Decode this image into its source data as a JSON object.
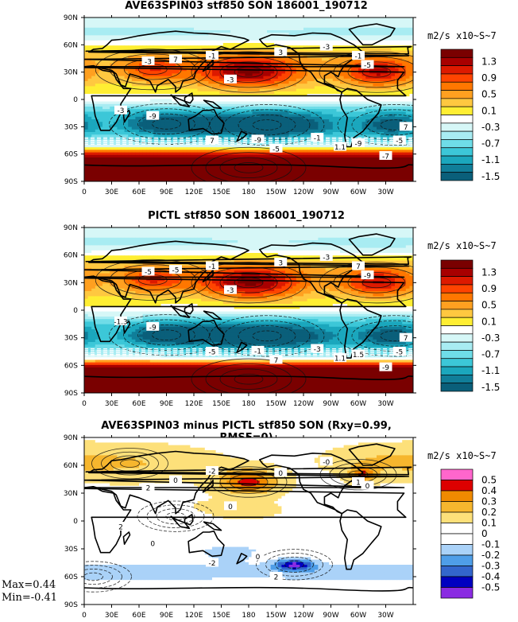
{
  "panels": [
    {
      "id": "p1",
      "title": "AVE63SPIN03 stf850 SON 186001_190712",
      "units": "m2/s x10~S~7",
      "colorbar": {
        "labels": [
          "1.3",
          "0.9",
          "0.5",
          "0.1",
          "-0.3",
          "-0.7",
          "-1.1",
          "-1.5"
        ],
        "colors": [
          "#7a0000",
          "#a80000",
          "#dd1a00",
          "#ff4400",
          "#ff7700",
          "#ffa020",
          "#ffc840",
          "#ffee33",
          "#ffffff",
          "#d6f7f7",
          "#a8ecf2",
          "#6fdde8",
          "#3cc7d8",
          "#1ba7bd",
          "#107e99",
          "#0a5f7a"
        ]
      },
      "contour_labels": [
        "-3",
        "7",
        "-1",
        "-3",
        "3",
        "-3",
        "-1",
        "-5",
        "-3",
        "-9",
        "7",
        "-9",
        "-5",
        "-1",
        "1.1",
        "-9",
        "-7",
        "-5",
        "7"
      ],
      "stats": null
    },
    {
      "id": "p2",
      "title": "PICTL stf850 SON 186001_190712",
      "units": "m2/s x10~S~7",
      "colorbar": {
        "labels": [
          "1.3",
          "0.9",
          "0.5",
          "0.1",
          "-0.3",
          "-0.7",
          "-1.1",
          "-1.5"
        ],
        "colors": [
          "#7a0000",
          "#a80000",
          "#dd1a00",
          "#ff4400",
          "#ff7700",
          "#ffa020",
          "#ffc840",
          "#ffee33",
          "#ffffff",
          "#d6f7f7",
          "#a8ecf2",
          "#6fdde8",
          "#3cc7d8",
          "#1ba7bd",
          "#107e99",
          "#0a5f7a"
        ]
      },
      "contour_labels": [
        "-5",
        "-5",
        "-1",
        "-3",
        "3",
        "-3",
        "7",
        "-9",
        "-1.3",
        "-9",
        "-5",
        "-1",
        "7",
        "-3",
        "1.1",
        "1.5",
        "-9",
        "-5",
        "7"
      ],
      "stats": null
    },
    {
      "id": "p3",
      "title": "AVE63SPIN03 minus PICTL stf850 SON (Rxy=0.99, RMSE=0)",
      "units": "m2/s x10~S~7",
      "colorbar": {
        "labels": [
          "0.5",
          "0.4",
          "0.3",
          "0.2",
          "0.1",
          "0",
          "-0.1",
          "-0.2",
          "-0.3",
          "-0.4",
          "-0.5"
        ],
        "colors": [
          "#ff66cc",
          "#dd0000",
          "#f08a00",
          "#f6b62e",
          "#fde07a",
          "#ffffff",
          "#ffffff",
          "#aad2f8",
          "#4f9ee8",
          "#3366cc",
          "#0000c0",
          "#8a2be2"
        ]
      },
      "contour_labels": [
        "2",
        "0",
        "-2",
        "0",
        "0",
        "-0",
        "1",
        "0",
        "2",
        "0",
        "-2",
        "0",
        "2"
      ],
      "stats": {
        "max": "Max=0.44",
        "min": "Min=-0.41"
      }
    }
  ],
  "axes": {
    "x_ticks": [
      "0",
      "30E",
      "60E",
      "90E",
      "120E",
      "150E",
      "180",
      "150W",
      "120W",
      "90W",
      "60W",
      "30W"
    ],
    "y_ticks": [
      "90N",
      "60N",
      "30N",
      "0",
      "30S",
      "60S",
      "90S"
    ]
  },
  "chart_data": [
    {
      "type": "heatmap",
      "title": "AVE63SPIN03 stf850 SON 186001_190712",
      "field": "850 hPa streamfunction",
      "units": "m2/s x10~S~7",
      "x": [
        "0",
        "30E",
        "60E",
        "90E",
        "120E",
        "150E",
        "180",
        "150W",
        "120W",
        "90W",
        "60W",
        "30W"
      ],
      "y": [
        "90N",
        "60N",
        "30N",
        "0",
        "30S",
        "60S",
        "90S"
      ],
      "xlim": [
        0,
        360
      ],
      "ylim": [
        -90,
        90
      ],
      "colorbar_levels": [
        1.3,
        0.9,
        0.5,
        0.1,
        -0.3,
        -0.7,
        -1.1,
        -1.5
      ],
      "features": [
        {
          "lon": 180,
          "lat": 30,
          "value": 1.3
        },
        {
          "lon": 320,
          "lat": 30,
          "value": 1.1
        },
        {
          "lon": 75,
          "lat": 33,
          "value": 0.7
        },
        {
          "lon": 200,
          "lat": -28,
          "value": -1.5
        },
        {
          "lon": 90,
          "lat": -27,
          "value": -1.1
        },
        {
          "lon": 340,
          "lat": -28,
          "value": -1.1
        },
        {
          "lon": 180,
          "lat": -75,
          "value": 1.5
        }
      ]
    },
    {
      "type": "heatmap",
      "title": "PICTL stf850 SON 186001_190712",
      "field": "850 hPa streamfunction",
      "units": "m2/s x10~S~7",
      "x": [
        "0",
        "30E",
        "60E",
        "90E",
        "120E",
        "150E",
        "180",
        "150W",
        "120W",
        "90W",
        "60W",
        "30W"
      ],
      "y": [
        "90N",
        "60N",
        "30N",
        "0",
        "30S",
        "60S",
        "90S"
      ],
      "xlim": [
        0,
        360
      ],
      "ylim": [
        -90,
        90
      ],
      "colorbar_levels": [
        1.3,
        0.9,
        0.5,
        0.1,
        -0.3,
        -0.7,
        -1.1,
        -1.5
      ],
      "features": [
        {
          "lon": 180,
          "lat": 30,
          "value": 1.3
        },
        {
          "lon": 320,
          "lat": 30,
          "value": 1.1
        },
        {
          "lon": 75,
          "lat": 33,
          "value": 0.7
        },
        {
          "lon": 200,
          "lat": -28,
          "value": -1.5
        },
        {
          "lon": 90,
          "lat": -27,
          "value": -1.1
        },
        {
          "lon": 340,
          "lat": -28,
          "value": -1.1
        },
        {
          "lon": 180,
          "lat": -75,
          "value": 1.5
        }
      ]
    },
    {
      "type": "heatmap",
      "title": "AVE63SPIN03 minus PICTL stf850 SON (Rxy=0.99, RMSE=0)",
      "field": "850 hPa streamfunction difference",
      "units": "m2/s x10~S~7",
      "x": [
        "0",
        "30E",
        "60E",
        "90E",
        "120E",
        "150E",
        "180",
        "150W",
        "120W",
        "90W",
        "60W",
        "30W"
      ],
      "y": [
        "90N",
        "60N",
        "30N",
        "0",
        "30S",
        "60S",
        "90S"
      ],
      "xlim": [
        0,
        360
      ],
      "ylim": [
        -90,
        90
      ],
      "colorbar_levels": [
        0.5,
        0.4,
        0.3,
        0.2,
        0.1,
        0,
        -0.1,
        -0.2,
        -0.3,
        -0.4,
        -0.5
      ],
      "max": 0.44,
      "min": -0.41,
      "features": [
        {
          "lon": 180,
          "lat": 42,
          "value": 0.44
        },
        {
          "lon": 300,
          "lat": 50,
          "value": 0.4
        },
        {
          "lon": 50,
          "lat": 62,
          "value": 0.25
        },
        {
          "lon": 230,
          "lat": -47,
          "value": -0.41
        },
        {
          "lon": 10,
          "lat": -60,
          "value": -0.25
        },
        {
          "lon": 100,
          "lat": 5,
          "value": -0.15
        }
      ]
    }
  ]
}
